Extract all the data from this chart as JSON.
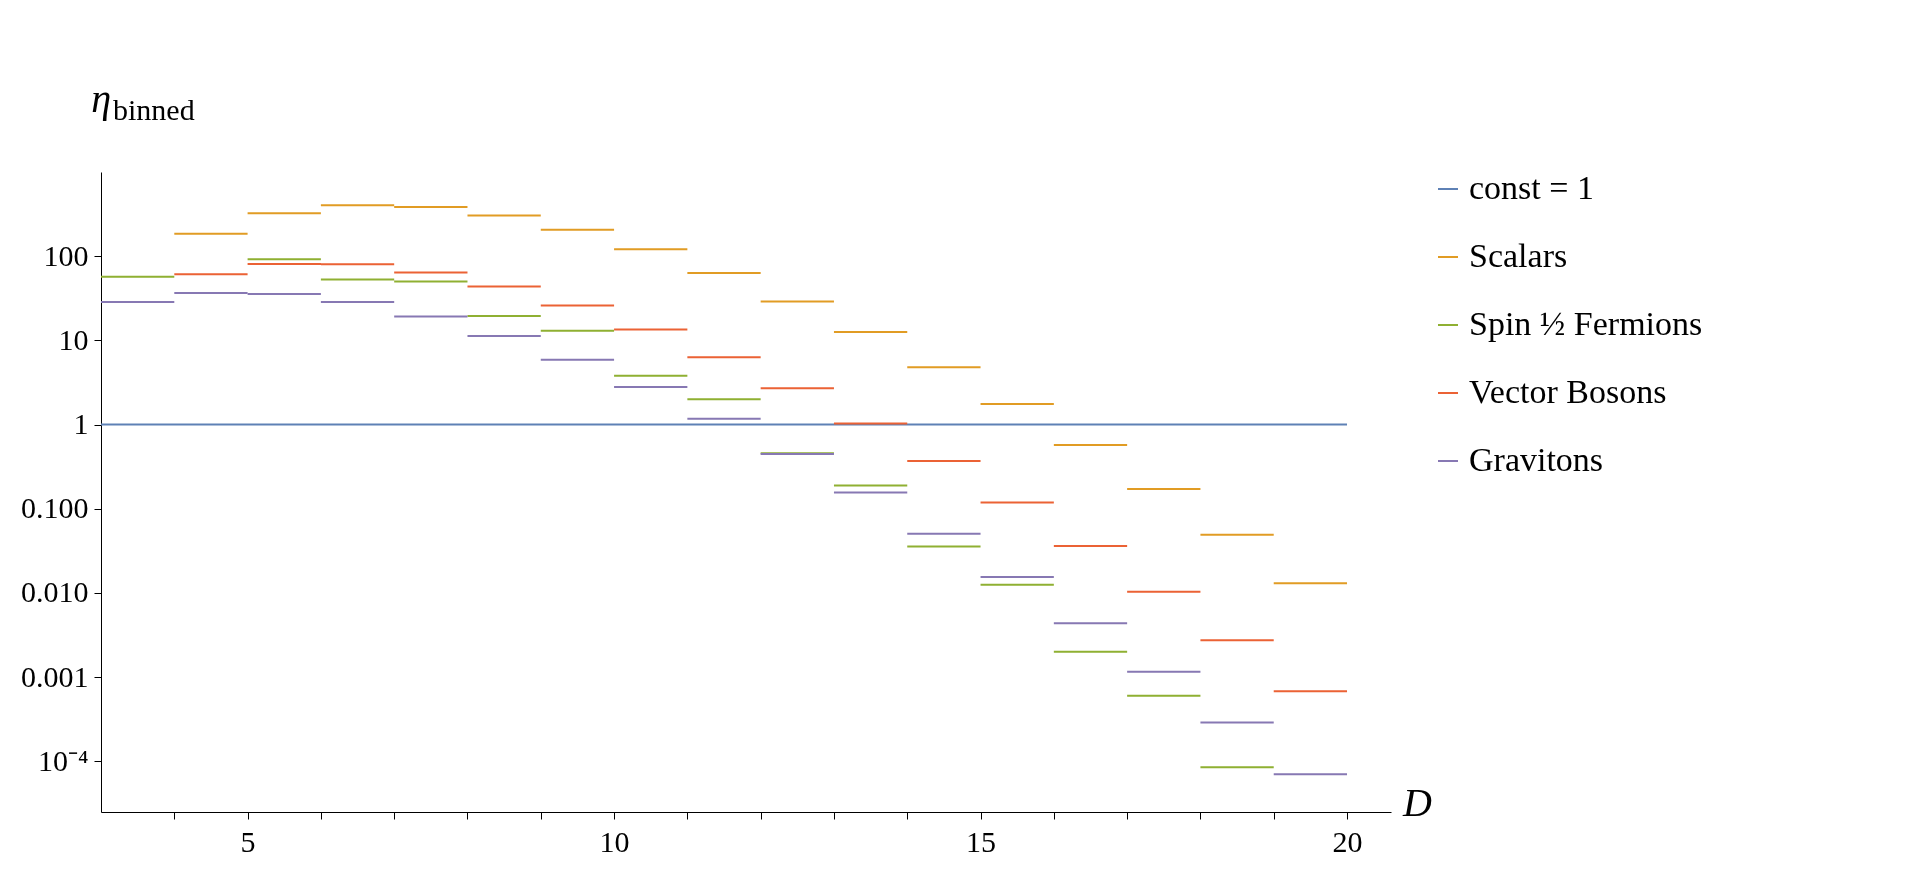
{
  "chart_data": {
    "type": "line",
    "xlabel": "D",
    "ylabel": "η$_{binned}$",
    "series": [
      {
        "name": "const = 1",
        "color": "#5e81b5",
        "x": [
          3,
          20
        ],
        "values": [
          1,
          1
        ]
      },
      {
        "name": "Scalars",
        "color": "#e19c24",
        "x": [
          4,
          5,
          null,
          5,
          6,
          null,
          6,
          7,
          null,
          7,
          8,
          null,
          8,
          9,
          null,
          9,
          10,
          null,
          10,
          11,
          null,
          11,
          12,
          null,
          12,
          13,
          null,
          13,
          14,
          null,
          14,
          15,
          null,
          15,
          16,
          null,
          16,
          17,
          null,
          17,
          18,
          null,
          18,
          19,
          null,
          19,
          20
        ],
        "values": [
          185,
          185,
          null,
          323,
          323,
          null,
          402,
          402,
          null,
          385,
          385,
          null,
          305,
          305,
          null,
          206,
          206,
          null,
          121,
          121,
          null,
          63,
          63,
          null,
          29,
          29,
          null,
          12.6,
          12.6,
          null,
          4.8,
          4.8,
          null,
          1.75,
          1.75,
          null,
          0.57,
          0.57,
          null,
          0.172,
          0.172,
          null,
          0.049,
          0.049,
          null,
          0.013,
          0.013
        ]
      },
      {
        "name": "Spin ½ Fermions",
        "color": "#8fb032",
        "x": [
          3,
          4,
          null,
          5,
          6,
          null,
          6,
          7,
          null,
          7,
          8,
          null,
          8,
          9,
          null,
          9,
          10,
          null,
          10,
          11,
          null,
          11,
          12,
          null,
          12,
          13,
          null,
          13,
          14,
          null,
          14,
          15,
          null,
          15,
          16,
          null,
          16,
          17,
          null,
          17,
          18,
          null,
          18,
          19
        ],
        "values": [
          57,
          57,
          null,
          92,
          92,
          null,
          53,
          53,
          null,
          50,
          50,
          null,
          19.5,
          19.5,
          null,
          13,
          13,
          null,
          3.8,
          3.8,
          null,
          2.0,
          2.0,
          null,
          0.455,
          0.455,
          null,
          0.189,
          0.189,
          null,
          0.0357,
          0.0357,
          null,
          0.0125,
          0.0125,
          null,
          0.002,
          0.002,
          null,
          0.0006,
          0.0006,
          null,
          8.5e-05,
          8.5e-05
        ]
      },
      {
        "name": "Vector Bosons",
        "color": "#eb6235",
        "x": [
          4,
          5,
          null,
          5,
          6,
          null,
          6,
          7,
          null,
          7,
          8,
          null,
          8,
          9,
          null,
          9,
          10,
          null,
          10,
          11,
          null,
          11,
          12,
          null,
          12,
          13,
          null,
          13,
          14,
          null,
          14,
          15,
          null,
          15,
          16,
          null,
          16,
          17,
          null,
          17,
          18,
          null,
          18,
          19,
          null,
          19,
          20
        ],
        "values": [
          61,
          61,
          null,
          81,
          81,
          null,
          80,
          80,
          null,
          64,
          64,
          null,
          43.5,
          43.5,
          null,
          26,
          26,
          null,
          13.5,
          13.5,
          null,
          6.3,
          6.3,
          null,
          2.7,
          2.7,
          null,
          1.03,
          1.03,
          null,
          0.37,
          0.37,
          null,
          0.119,
          0.119,
          null,
          0.036,
          0.036,
          null,
          0.0103,
          0.0103,
          null,
          0.00275,
          0.00275,
          null,
          0.00068,
          0.00068
        ]
      },
      {
        "name": "Gravitons",
        "color": "#8778b3",
        "x": [
          3,
          4,
          null,
          4,
          5,
          null,
          5,
          6,
          null,
          6,
          7,
          null,
          7,
          8,
          null,
          8,
          9,
          null,
          9,
          10,
          null,
          10,
          11,
          null,
          11,
          12,
          null,
          12,
          13,
          null,
          13,
          14,
          null,
          14,
          15,
          null,
          15,
          16,
          null,
          16,
          17,
          null,
          17,
          18,
          null,
          18,
          19,
          null,
          19,
          20
        ],
        "values": [
          28.6,
          28.6,
          null,
          36.5,
          36.5,
          null,
          35.5,
          35.5,
          null,
          28.6,
          28.6,
          null,
          19.2,
          19.2,
          null,
          11.3,
          11.3,
          null,
          5.9,
          5.9,
          null,
          2.8,
          2.8,
          null,
          1.17,
          1.17,
          null,
          0.446,
          0.446,
          null,
          0.156,
          0.156,
          null,
          0.0506,
          0.0506,
          null,
          0.0155,
          0.0155,
          null,
          0.00435,
          0.00435,
          null,
          0.00116,
          0.00116,
          null,
          0.00029,
          0.00029,
          null,
          7e-05,
          7e-05
        ]
      }
    ],
    "log": "y",
    "xlim": [
      3,
      20.6
    ],
    "xticks": [
      {
        "value": 4,
        "label": null
      },
      5,
      {
        "value": 6,
        "label": null
      },
      {
        "value": 7,
        "label": null
      },
      {
        "value": 8,
        "label": null
      },
      {
        "value": 9,
        "label": null
      },
      10,
      {
        "value": 11,
        "label": null
      },
      {
        "value": 12,
        "label": null
      },
      {
        "value": 13,
        "label": null
      },
      {
        "value": 14,
        "label": null
      },
      15,
      {
        "value": 16,
        "label": null
      },
      {
        "value": 17,
        "label": null
      },
      {
        "value": 18,
        "label": null
      },
      {
        "value": 19,
        "label": null
      },
      20
    ],
    "ylim": [
      2.5e-05,
      1000
    ],
    "yticks": [
      {
        "value": 0.0001,
        "label": "10⁻⁴"
      },
      {
        "value": 0.001,
        "label": "0.001"
      },
      {
        "value": 0.01,
        "label": "0.010"
      },
      {
        "value": 0.1,
        "label": "0.100"
      },
      1,
      10,
      100
    ],
    "grid": false,
    "legend": "right",
    "line_style": "solid",
    "marker": "none"
  }
}
